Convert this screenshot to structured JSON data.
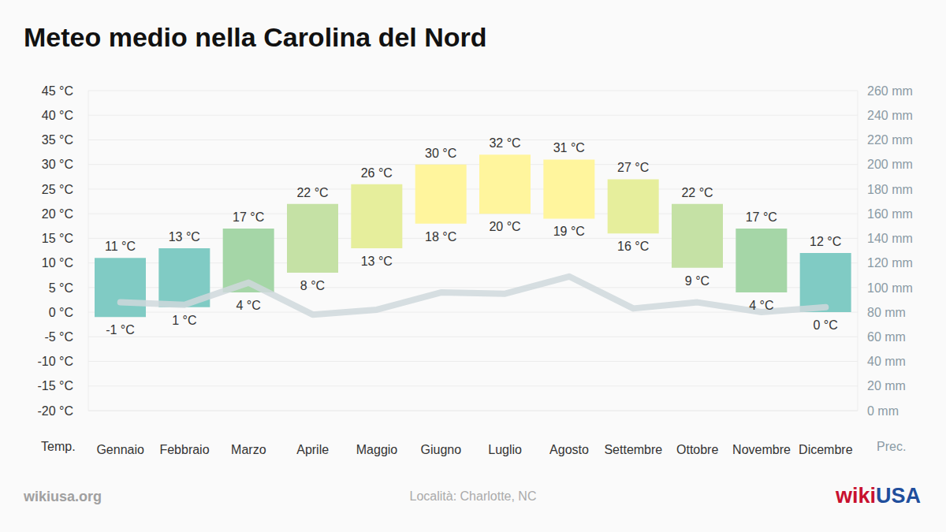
{
  "chart_data": {
    "type": "bar",
    "title": "Meteo medio nella Carolina del Nord",
    "ylabel": "Temp.",
    "y2label": "Prec.",
    "categories": [
      "Gennaio",
      "Febbraio",
      "Marzo",
      "Aprile",
      "Maggio",
      "Giugno",
      "Luglio",
      "Agosto",
      "Settembre",
      "Ottobre",
      "Novembre",
      "Dicembre"
    ],
    "series": [
      {
        "type": "bar",
        "values": [
          [
            -1,
            11
          ],
          [
            1,
            13
          ],
          [
            4,
            17
          ],
          [
            8,
            22
          ],
          [
            13,
            26
          ],
          [
            18,
            30
          ],
          [
            20,
            32
          ],
          [
            19,
            31
          ],
          [
            16,
            27
          ],
          [
            9,
            22
          ],
          [
            4,
            17
          ],
          [
            0,
            12
          ]
        ],
        "value_labels": [
          [
            "-1 °C",
            "11 °C"
          ],
          [
            "1 °C",
            "13 °C"
          ],
          [
            "4 °C",
            "17 °C"
          ],
          [
            "8 °C",
            "22 °C"
          ],
          [
            "13 °C",
            "26 °C"
          ],
          [
            "18 °C",
            "30 °C"
          ],
          [
            "20 °C",
            "32 °C"
          ],
          [
            "19 °C",
            "31 °C"
          ],
          [
            "16 °C",
            "27 °C"
          ],
          [
            "9 °C",
            "22 °C"
          ],
          [
            "4 °C",
            "17 °C"
          ],
          [
            "0 °C",
            "12 °C"
          ]
        ],
        "colors": [
          "#80cbc4",
          "#80cbc4",
          "#a5d6a7",
          "#c5e1a5",
          "#e6ee9c",
          "#fff59d",
          "#fff59d",
          "#fff59d",
          "#e6ee9c",
          "#c5e1a5",
          "#a5d6a7",
          "#80cbc4"
        ]
      },
      {
        "type": "line",
        "axis": "y2",
        "values": [
          88,
          86,
          104,
          78,
          82,
          96,
          95,
          109,
          83,
          88,
          80,
          84
        ],
        "color": "#cfd8dc"
      }
    ],
    "ylim": [
      -20,
      45
    ],
    "yticks": [
      {
        "value": -20,
        "label": "-20 °C"
      },
      {
        "value": -15,
        "label": "-15 °C"
      },
      {
        "value": -10,
        "label": "-10 °C"
      },
      {
        "value": -5,
        "label": "-5 °C"
      },
      {
        "value": 0,
        "label": "0 °C"
      },
      {
        "value": 5,
        "label": "5 °C"
      },
      {
        "value": 10,
        "label": "10 °C"
      },
      {
        "value": 15,
        "label": "15 °C"
      },
      {
        "value": 20,
        "label": "20 °C"
      },
      {
        "value": 25,
        "label": "25 °C"
      },
      {
        "value": 30,
        "label": "30 °C"
      },
      {
        "value": 35,
        "label": "35 °C"
      },
      {
        "value": 40,
        "label": "40 °C"
      },
      {
        "value": 45,
        "label": "45 °C"
      }
    ],
    "y2lim": [
      0,
      260
    ],
    "y2ticks": [
      {
        "value": 0,
        "label": "0 mm"
      },
      {
        "value": 20,
        "label": "20 mm"
      },
      {
        "value": 40,
        "label": "40 mm"
      },
      {
        "value": 60,
        "label": "60 mm"
      },
      {
        "value": 80,
        "label": "80 mm"
      },
      {
        "value": 100,
        "label": "100 mm"
      },
      {
        "value": 120,
        "label": "120 mm"
      },
      {
        "value": 140,
        "label": "140 mm"
      },
      {
        "value": 160,
        "label": "160 mm"
      },
      {
        "value": 180,
        "label": "180 mm"
      },
      {
        "value": 200,
        "label": "200 mm"
      },
      {
        "value": 220,
        "label": "220 mm"
      },
      {
        "value": 240,
        "label": "240 mm"
      },
      {
        "value": 260,
        "label": "260 mm"
      }
    ],
    "grid": true,
    "data_labels": true
  },
  "source": "wikiusa.org",
  "location": "Località: Charlotte, NC",
  "logo": [
    "wiki",
    "USA"
  ]
}
